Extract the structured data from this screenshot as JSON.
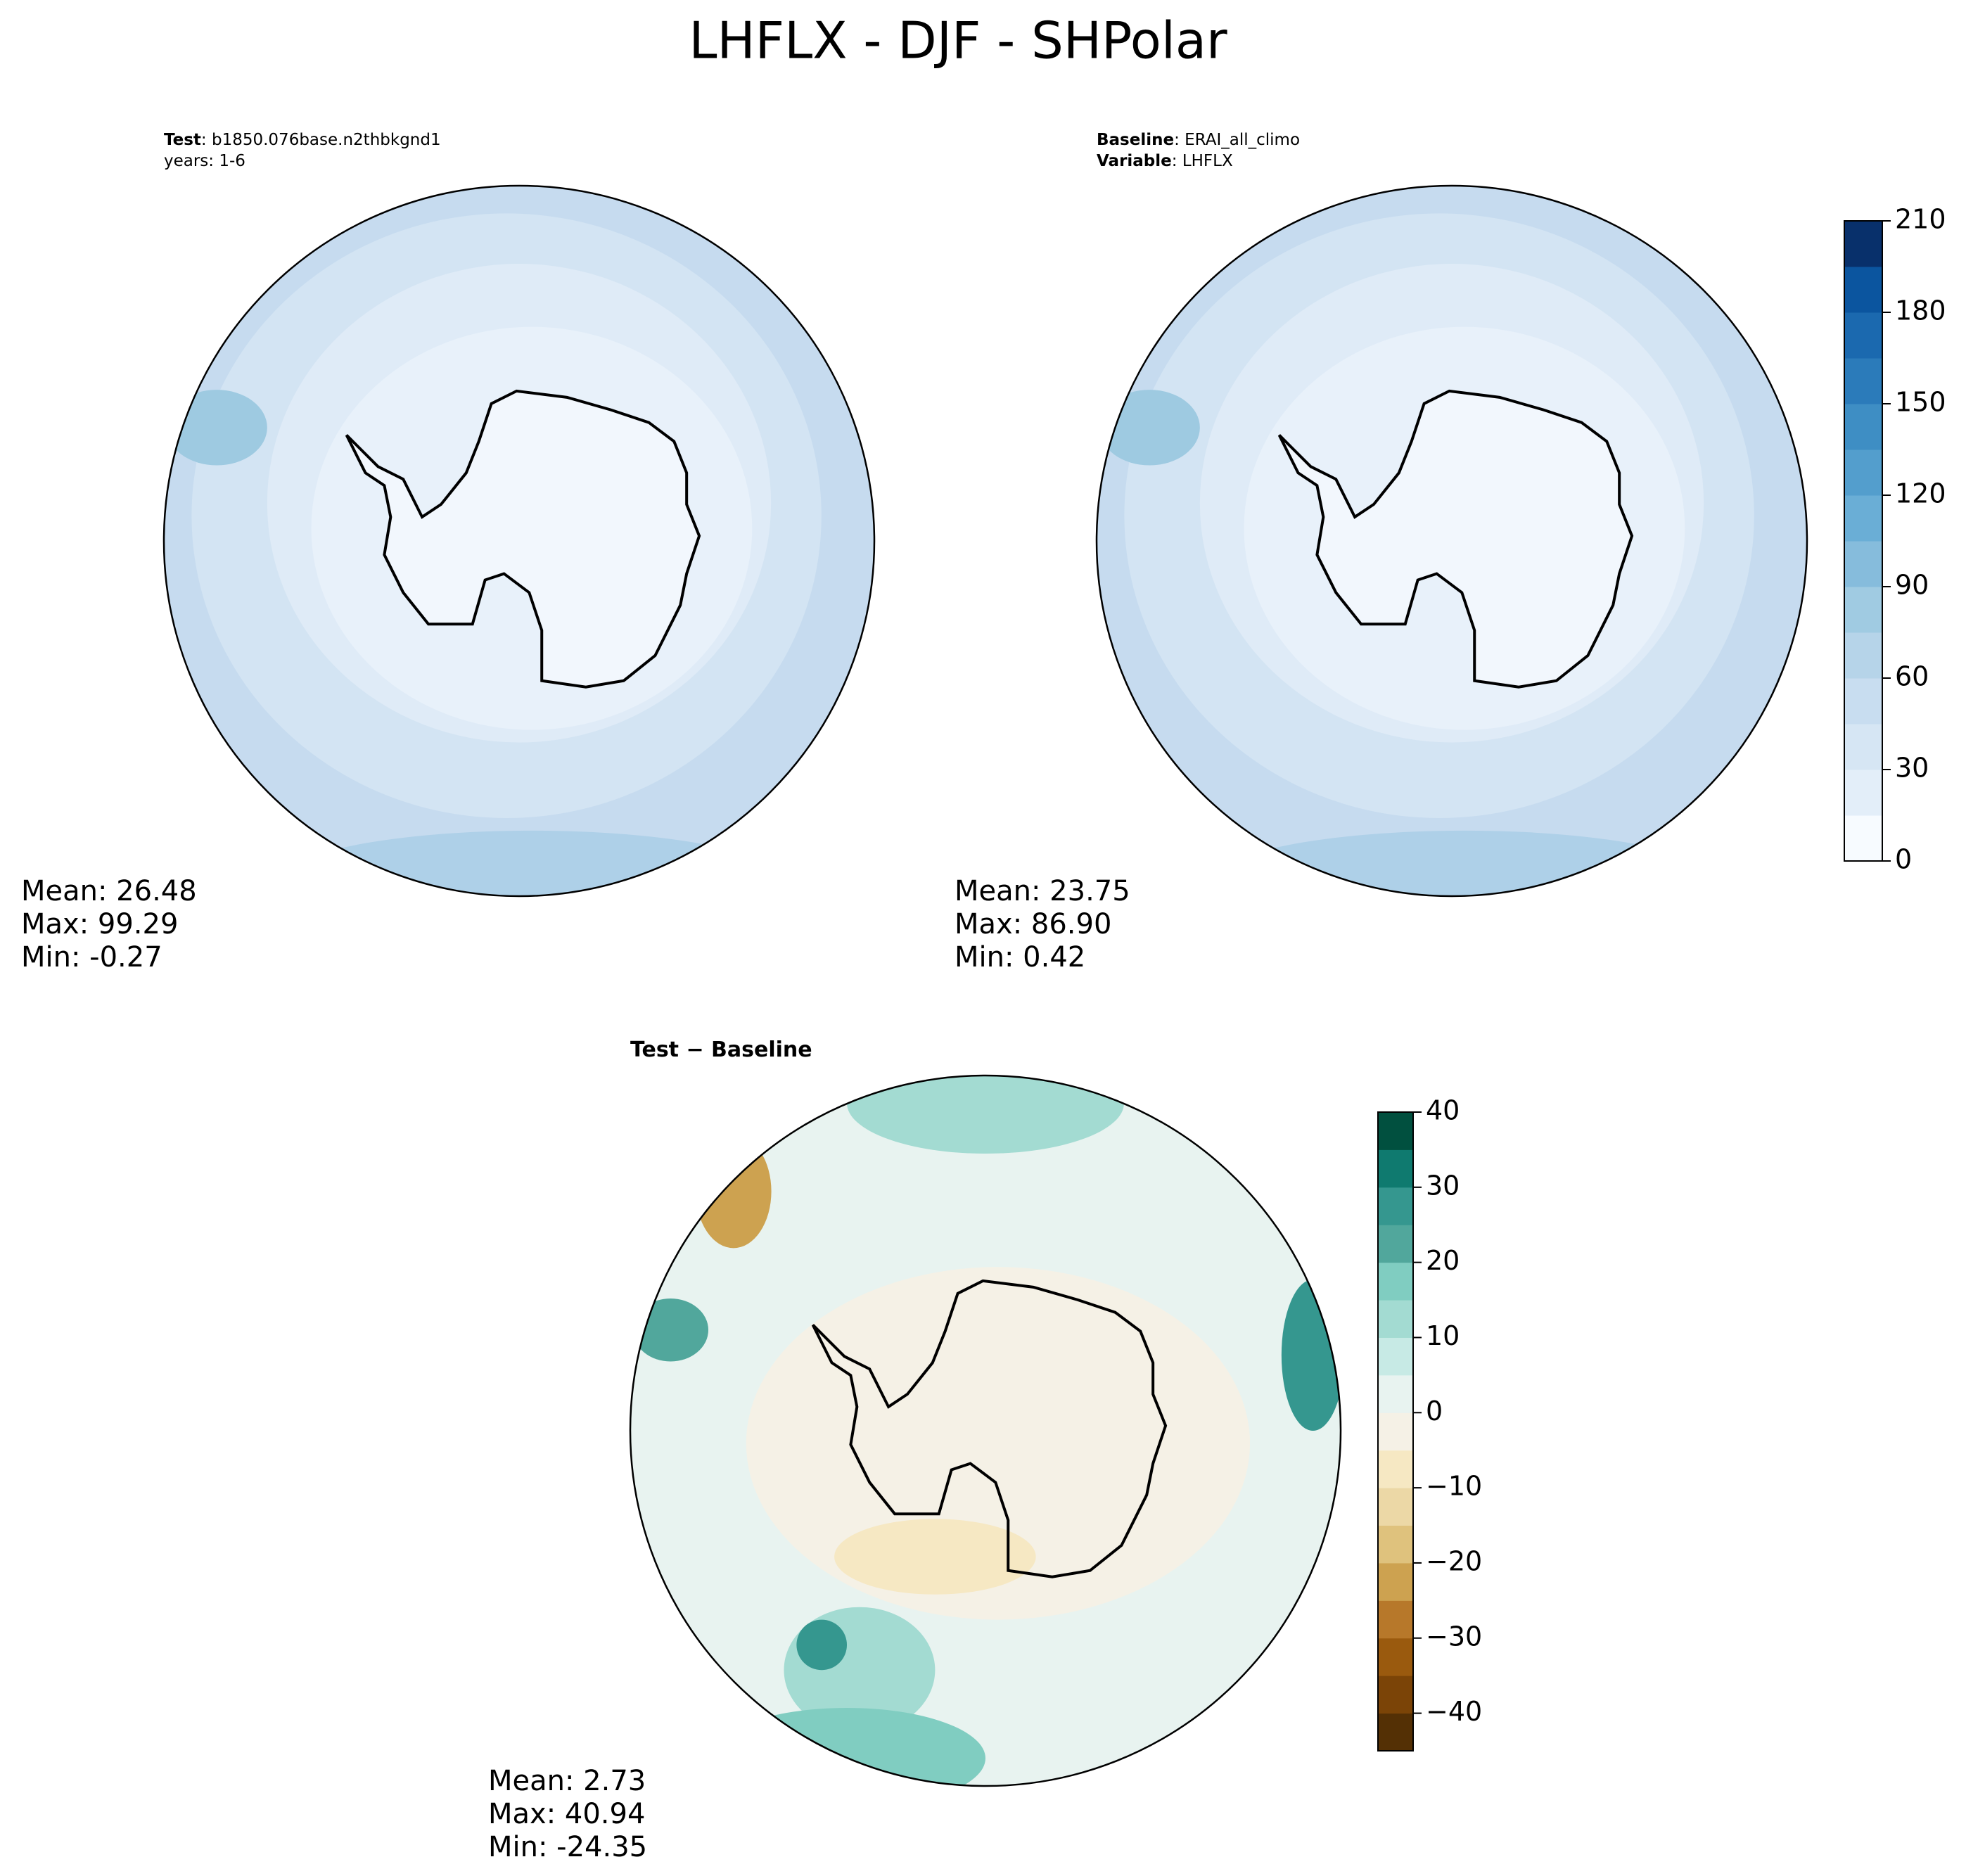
{
  "title": "LHFLX - DJF - SHPolar",
  "chart_data": [
    {
      "type": "polar_contour",
      "header": [
        [
          {
            "text": "Test",
            "bold": true
          },
          {
            "text": ": b1850.076base.n2thbkgnd1"
          }
        ],
        [
          {
            "text": "years: 1-6"
          }
        ]
      ],
      "stats": [
        "Mean: 26.48",
        "Max: 99.29",
        "Min: -0.27"
      ],
      "cmap": "blues"
    },
    {
      "type": "polar_contour",
      "header": [
        [
          {
            "text": "Baseline",
            "bold": true
          },
          {
            "text": ": ERAI_all_climo"
          }
        ],
        [
          {
            "text": "Variable",
            "bold": true
          },
          {
            "text": ": LHFLX"
          }
        ]
      ],
      "stats": [
        "Mean: 23.75",
        "Max: 86.90",
        "Min:  0.42"
      ],
      "cmap": "blues",
      "colorbar": {
        "ylim": [
          0,
          210
        ],
        "yticks": [
          0,
          30,
          60,
          90,
          120,
          150,
          180,
          210
        ],
        "colors": [
          "#f7fbff",
          "#e3eef9",
          "#d6e6f4",
          "#c8ddf0",
          "#b6d4e9",
          "#a0cbe2",
          "#86bcdc",
          "#6aaed6",
          "#539ecd",
          "#3e8ec4",
          "#2b7bba",
          "#1b69af",
          "#0b559f",
          "#08306b"
        ]
      }
    },
    {
      "type": "polar_contour",
      "header": [
        [
          {
            "text": "Test − Baseline",
            "bold": true
          }
        ]
      ],
      "stats": [
        "Mean:  2.73",
        "Max: 40.94",
        "Min: -24.35"
      ],
      "cmap": "diverging",
      "colorbar": {
        "ylim": [
          -45,
          40
        ],
        "yticks": [
          {
            "value": -40,
            "label": "−40"
          },
          {
            "value": -30,
            "label": "−30"
          },
          {
            "value": -20,
            "label": "−20"
          },
          {
            "value": -10,
            "label": "−10"
          },
          0,
          10,
          20,
          30,
          40
        ],
        "colors": [
          "#543005",
          "#7b4407",
          "#9a5a0e",
          "#b7782a",
          "#cda250",
          "#dfc27d",
          "#ecd8a6",
          "#f6e8c3",
          "#f5f1e6",
          "#e8f3f0",
          "#c7eae5",
          "#a3dbd2",
          "#80cdc1",
          "#51a79c",
          "#35978f",
          "#0f7a6f",
          "#01503f"
        ]
      }
    }
  ]
}
